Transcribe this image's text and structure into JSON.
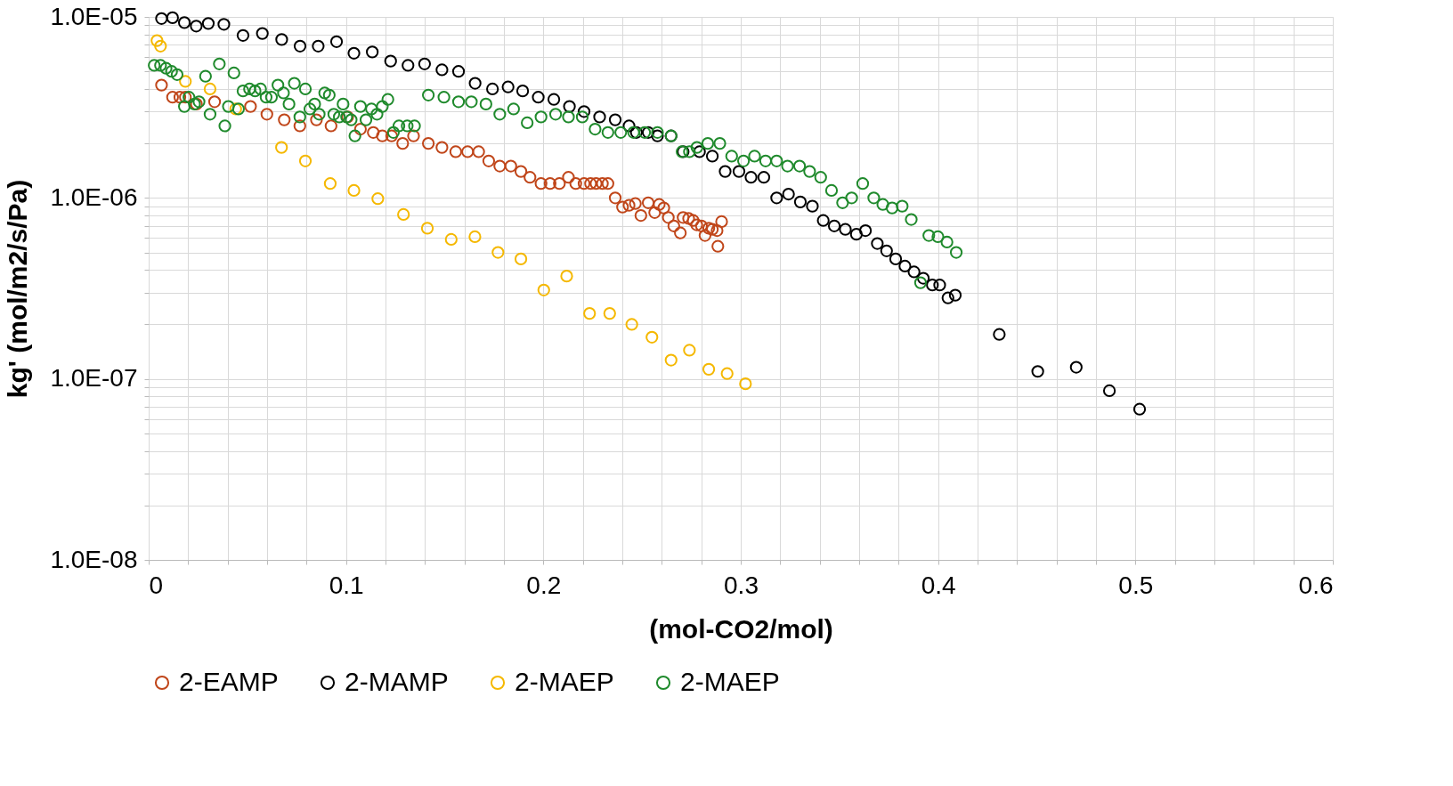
{
  "chart_data": {
    "type": "scatter",
    "xlabel": "(mol-CO2/mol)",
    "ylabel": "kg' (mol/m2/s/Pa)",
    "log": "y",
    "grid": true,
    "legend": "bottom",
    "marker": "circle",
    "xlim": [
      0,
      0.6
    ],
    "xticks": [
      0,
      {
        "value": 0.02,
        "label": null
      },
      {
        "value": 0.04,
        "label": null
      },
      {
        "value": 0.06,
        "label": null
      },
      {
        "value": 0.08,
        "label": null
      },
      0.1,
      {
        "value": 0.12,
        "label": null
      },
      {
        "value": 0.14,
        "label": null
      },
      {
        "value": 0.16,
        "label": null
      },
      {
        "value": 0.18,
        "label": null
      },
      0.2,
      {
        "value": 0.22,
        "label": null
      },
      {
        "value": 0.24,
        "label": null
      },
      {
        "value": 0.26,
        "label": null
      },
      {
        "value": 0.28,
        "label": null
      },
      0.3,
      {
        "value": 0.32,
        "label": null
      },
      {
        "value": 0.34,
        "label": null
      },
      {
        "value": 0.36,
        "label": null
      },
      {
        "value": 0.38,
        "label": null
      },
      0.4,
      {
        "value": 0.42,
        "label": null
      },
      {
        "value": 0.44,
        "label": null
      },
      {
        "value": 0.46,
        "label": null
      },
      {
        "value": 0.48,
        "label": null
      },
      0.5,
      {
        "value": 0.52,
        "label": null
      },
      {
        "value": 0.54,
        "label": null
      },
      {
        "value": 0.56,
        "label": null
      },
      {
        "value": 0.58,
        "label": null
      },
      0.6
    ],
    "ylim": [
      1e-08,
      1e-05
    ],
    "yticks": [
      {
        "value": 1e-08,
        "label": "1.0E-08"
      },
      {
        "value": 2e-08,
        "label": null
      },
      {
        "value": 3e-08,
        "label": null
      },
      {
        "value": 4e-08,
        "label": null
      },
      {
        "value": 5e-08,
        "label": null
      },
      {
        "value": 6e-08,
        "label": null
      },
      {
        "value": 7e-08,
        "label": null
      },
      {
        "value": 8e-08,
        "label": null
      },
      {
        "value": 9e-08,
        "label": null
      },
      {
        "value": 1e-07,
        "label": "1.0E-07"
      },
      {
        "value": 2e-07,
        "label": null
      },
      {
        "value": 3e-07,
        "label": null
      },
      {
        "value": 4e-07,
        "label": null
      },
      {
        "value": 5e-07,
        "label": null
      },
      {
        "value": 6e-07,
        "label": null
      },
      {
        "value": 7e-07,
        "label": null
      },
      {
        "value": 8e-07,
        "label": null
      },
      {
        "value": 9e-07,
        "label": null
      },
      {
        "value": 1e-06,
        "label": "1.0E-06"
      },
      {
        "value": 2e-06,
        "label": null
      },
      {
        "value": 3e-06,
        "label": null
      },
      {
        "value": 4e-06,
        "label": null
      },
      {
        "value": 5e-06,
        "label": null
      },
      {
        "value": 6e-06,
        "label": null
      },
      {
        "value": 7e-06,
        "label": null
      },
      {
        "value": 8e-06,
        "label": null
      },
      {
        "value": 9e-06,
        "label": null
      },
      {
        "value": 1e-05,
        "label": "1.0E-05"
      }
    ],
    "series": [
      {
        "name": "2-EAMP",
        "color": "#c0461a",
        "x": [
          0.0065,
          0.0121,
          0.0158,
          0.0186,
          0.0242,
          0.0334,
          0.0516,
          0.0599,
          0.0687,
          0.0766,
          0.085,
          0.0924,
          0.1008,
          0.1073,
          0.1138,
          0.1184,
          0.1231,
          0.1287,
          0.1342,
          0.1417,
          0.1486,
          0.1556,
          0.1616,
          0.1672,
          0.1723,
          0.1779,
          0.1835,
          0.1886,
          0.1932,
          0.1988,
          0.2034,
          0.2081,
          0.2127,
          0.2164,
          0.2206,
          0.2239,
          0.2267,
          0.2299,
          0.2327,
          0.2364,
          0.2401,
          0.2434,
          0.2466,
          0.2494,
          0.2531,
          0.2564,
          0.2587,
          0.261,
          0.2633,
          0.2661,
          0.2694,
          0.2708,
          0.2736,
          0.2759,
          0.2777,
          0.2801,
          0.2819,
          0.2838,
          0.2856,
          0.288,
          0.2903,
          0.2884
        ],
        "values": [
          4.2e-06,
          3.6e-06,
          3.6e-06,
          3.6e-06,
          3.3e-06,
          3.4e-06,
          3.2e-06,
          2.9e-06,
          2.7e-06,
          2.5e-06,
          2.7e-06,
          2.5e-06,
          2.8e-06,
          2.4e-06,
          2.3e-06,
          2.2e-06,
          2.2e-06,
          2e-06,
          2.2e-06,
          2e-06,
          1.9e-06,
          1.8e-06,
          1.8e-06,
          1.8e-06,
          1.6e-06,
          1.5e-06,
          1.5e-06,
          1.4e-06,
          1.3e-06,
          1.2e-06,
          1.2e-06,
          1.2e-06,
          1.3e-06,
          1.2e-06,
          1.2e-06,
          1.2e-06,
          1.2e-06,
          1.2e-06,
          1.2e-06,
          1e-06,
          8.9e-07,
          9.1e-07,
          9.3e-07,
          8e-07,
          9.4e-07,
          8.3e-07,
          9.2e-07,
          8.8e-07,
          7.8e-07,
          7e-07,
          6.4e-07,
          7.8e-07,
          7.7e-07,
          7.5e-07,
          7.1e-07,
          7e-07,
          6.2e-07,
          6.8e-07,
          6.7e-07,
          6.6e-07,
          7.4e-07,
          5.4e-07
        ]
      },
      {
        "name": "2-MAMP",
        "color": "#000000",
        "x": [
          0.0065,
          0.0121,
          0.0181,
          0.0241,
          0.0302,
          0.0381,
          0.0478,
          0.0576,
          0.0674,
          0.0767,
          0.0859,
          0.0952,
          0.104,
          0.1133,
          0.1226,
          0.1314,
          0.1398,
          0.1486,
          0.157,
          0.1654,
          0.1742,
          0.1821,
          0.1895,
          0.1974,
          0.2053,
          0.2132,
          0.2206,
          0.2285,
          0.2364,
          0.2434,
          0.2471,
          0.2531,
          0.2578,
          0.2647,
          0.2708,
          0.2791,
          0.2856,
          0.2921,
          0.2991,
          0.3052,
          0.3117,
          0.3182,
          0.3242,
          0.3302,
          0.3363,
          0.3418,
          0.3474,
          0.353,
          0.3586,
          0.3632,
          0.3692,
          0.3739,
          0.3785,
          0.3832,
          0.3878,
          0.3925,
          0.3971,
          0.4008,
          0.405,
          0.4087,
          0.431,
          0.4505,
          0.47,
          0.4868,
          0.5021
        ],
        "values": [
          9.8e-06,
          9.9e-06,
          9.3e-06,
          8.9e-06,
          9.2e-06,
          9.1e-06,
          7.9e-06,
          8.1e-06,
          7.5e-06,
          6.9e-06,
          6.9e-06,
          7.3e-06,
          6.3e-06,
          6.4e-06,
          5.7e-06,
          5.4e-06,
          5.5e-06,
          5.1e-06,
          5e-06,
          4.3e-06,
          4e-06,
          4.1e-06,
          3.9e-06,
          3.6e-06,
          3.5e-06,
          3.2e-06,
          3e-06,
          2.8e-06,
          2.7e-06,
          2.5e-06,
          2.3e-06,
          2.3e-06,
          2.2e-06,
          2.2e-06,
          1.8e-06,
          1.8e-06,
          1.7e-06,
          1.4e-06,
          1.4e-06,
          1.3e-06,
          1.3e-06,
          1e-06,
          1.05e-06,
          9.5e-07,
          9e-07,
          7.5e-07,
          7e-07,
          6.7e-07,
          6.3e-07,
          6.6e-07,
          5.6e-07,
          5.1e-07,
          4.6e-07,
          4.2e-07,
          3.9e-07,
          3.6e-07,
          3.3e-07,
          3.3e-07,
          2.8e-07,
          2.9e-07,
          1.76e-07,
          1.1e-07,
          1.16e-07,
          8.6e-08,
          6.8e-08
        ]
      },
      {
        "name": "2-MAEP",
        "color": "#f5b800",
        "x": [
          0.0042,
          0.006,
          0.0186,
          0.0311,
          0.0441,
          0.0673,
          0.0794,
          0.092,
          0.104,
          0.1161,
          0.1291,
          0.1412,
          0.1533,
          0.1653,
          0.177,
          0.1886,
          0.2002,
          0.2118,
          0.2234,
          0.2336,
          0.2448,
          0.255,
          0.2647,
          0.274,
          0.2838,
          0.2931,
          0.3024
        ],
        "values": [
          7.4e-06,
          6.9e-06,
          4.4e-06,
          4e-06,
          3.1e-06,
          1.9e-06,
          1.6e-06,
          1.2e-06,
          1.1e-06,
          9.9e-07,
          8.1e-07,
          6.8e-07,
          5.9e-07,
          6.1e-07,
          5e-07,
          4.6e-07,
          3.1e-07,
          3.7e-07,
          2.3e-07,
          2.3e-07,
          2e-07,
          1.7e-07,
          1.27e-07,
          1.44e-07,
          1.13e-07,
          1.07e-07,
          9.4e-08
        ]
      },
      {
        "name": "2-MAEP",
        "color": "#1f8a2c",
        "x": [
          0.0028,
          0.006,
          0.0088,
          0.0116,
          0.0144,
          0.0181,
          0.0204,
          0.0232,
          0.0255,
          0.0288,
          0.0311,
          0.0358,
          0.0386,
          0.0404,
          0.0432,
          0.0455,
          0.0478,
          0.0511,
          0.0539,
          0.0567,
          0.0595,
          0.0622,
          0.0655,
          0.0683,
          0.0711,
          0.0738,
          0.0766,
          0.0794,
          0.0817,
          0.0841,
          0.0864,
          0.0892,
          0.0915,
          0.0938,
          0.0966,
          0.0985,
          0.1003,
          0.1026,
          0.1045,
          0.1073,
          0.1101,
          0.1129,
          0.1157,
          0.1184,
          0.1212,
          0.124,
          0.1268,
          0.131,
          0.1347,
          0.1417,
          0.1496,
          0.157,
          0.1635,
          0.1709,
          0.1779,
          0.1849,
          0.1918,
          0.1988,
          0.2062,
          0.2127,
          0.2197,
          0.2262,
          0.2327,
          0.2392,
          0.2457,
          0.2513,
          0.2578,
          0.2647,
          0.2703,
          0.274,
          0.2778,
          0.2833,
          0.2894,
          0.2954,
          0.3014,
          0.307,
          0.3126,
          0.3182,
          0.3237,
          0.3298,
          0.3349,
          0.3405,
          0.346,
          0.3516,
          0.3562,
          0.3618,
          0.3674,
          0.372,
          0.3767,
          0.3818,
          0.3864,
          0.3911,
          0.3953,
          0.3999,
          0.4045,
          0.4092
        ],
        "values": [
          5.4e-06,
          5.4e-06,
          5.2e-06,
          5e-06,
          4.8e-06,
          3.2e-06,
          3.6e-06,
          3.3e-06,
          3.4e-06,
          4.7e-06,
          2.9e-06,
          5.5e-06,
          2.5e-06,
          3.2e-06,
          4.9e-06,
          3.1e-06,
          3.9e-06,
          4e-06,
          3.9e-06,
          4e-06,
          3.6e-06,
          3.6e-06,
          4.2e-06,
          3.8e-06,
          3.3e-06,
          4.3e-06,
          2.8e-06,
          4e-06,
          3.1e-06,
          3.3e-06,
          2.9e-06,
          3.8e-06,
          3.7e-06,
          2.9e-06,
          2.8e-06,
          3.3e-06,
          2.8e-06,
          2.7e-06,
          2.2e-06,
          3.2e-06,
          2.7e-06,
          3.1e-06,
          2.9e-06,
          3.2e-06,
          3.5e-06,
          2.3e-06,
          2.5e-06,
          2.5e-06,
          2.5e-06,
          3.7e-06,
          3.6e-06,
          3.4e-06,
          3.4e-06,
          3.3e-06,
          2.9e-06,
          3.1e-06,
          2.6e-06,
          2.8e-06,
          2.9e-06,
          2.8e-06,
          2.8e-06,
          2.4e-06,
          2.3e-06,
          2.3e-06,
          2.3e-06,
          2.3e-06,
          2.3e-06,
          2.2e-06,
          1.8e-06,
          1.8e-06,
          1.9e-06,
          2e-06,
          2e-06,
          1.7e-06,
          1.6e-06,
          1.7e-06,
          1.6e-06,
          1.6e-06,
          1.5e-06,
          1.5e-06,
          1.4e-06,
          1.3e-06,
          1.1e-06,
          9.4e-07,
          1e-06,
          1.2e-06,
          1e-06,
          9.2e-07,
          8.8e-07,
          9e-07,
          7.6e-07,
          3.4e-07,
          6.2e-07,
          6.1e-07,
          5.7e-07,
          5e-07
        ]
      }
    ]
  }
}
